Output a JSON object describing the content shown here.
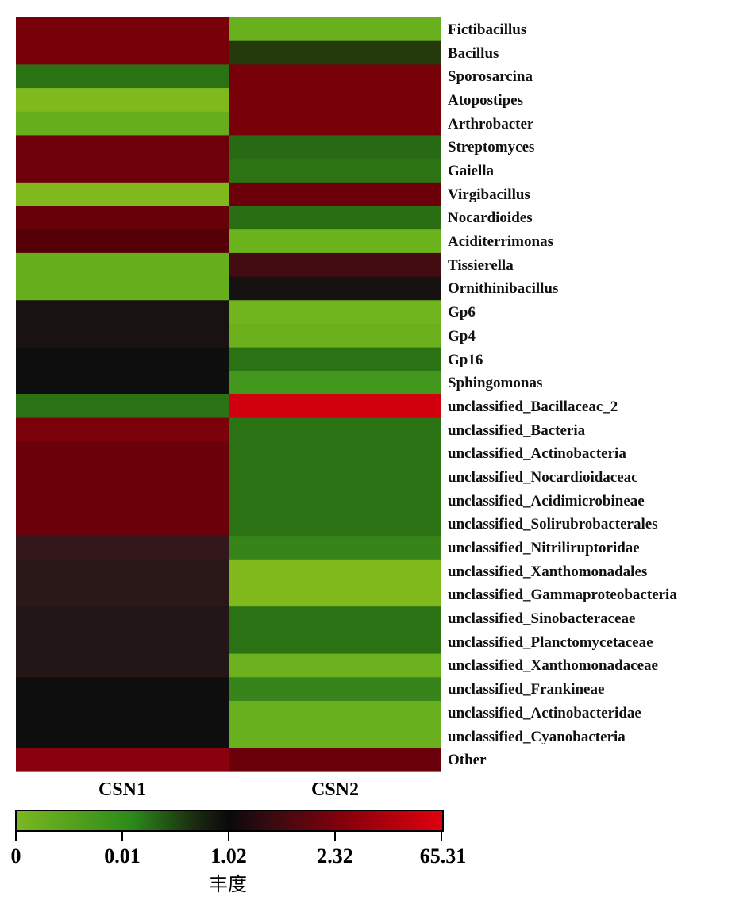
{
  "chart_data": {
    "type": "heatmap",
    "columns": [
      "CSN1",
      "CSN2"
    ],
    "rows": [
      "Fictibacillus",
      "Bacillus",
      "Sporosarcina",
      "Atopostipes",
      "Arthrobacter",
      "Streptomyces",
      "Gaiella",
      "Virgibacillus",
      "Nocardioides",
      "Aciditerrimonas",
      "Tissierella",
      "Ornithinibacillus",
      "Gp6",
      "Gp4",
      "Gp16",
      "Sphingomonas",
      "unclassified_Bacillaceac_2",
      "unclassified_Bacteria",
      "unclassified_Actinobacteria",
      "unclassified_Nocardioidaceac",
      "unclassified_Acidimicrobineae",
      "unclassified_Solirubrobacterales",
      "unclassified_Nitriliruptoridae",
      "unclassified_Xanthomonadales",
      "unclassified_Gammaproteobacteria",
      "unclassified_Sinobacteraceae",
      "unclassified_Planctomycetaceae",
      "unclassified_Xanthomonadaceae",
      "unclassified_Frankineae",
      "unclassified_Actinobacteridae",
      "unclassified_Cyanobacteria",
      "Other"
    ],
    "cell_colors": [
      [
        "#780008",
        "#68b01e"
      ],
      [
        "#780008",
        "#253a0c"
      ],
      [
        "#2a7214",
        "#780008"
      ],
      [
        "#7fb91c",
        "#780008"
      ],
      [
        "#66ae1c",
        "#780008"
      ],
      [
        "#6e000a",
        "#286a14"
      ],
      [
        "#6e000a",
        "#2c7414"
      ],
      [
        "#7fb91c",
        "#6c000a"
      ],
      [
        "#68000a",
        "#2a6e14"
      ],
      [
        "#550006",
        "#6cb41e"
      ],
      [
        "#66ae1c",
        "#420c12"
      ],
      [
        "#66ae1c",
        "#161212"
      ],
      [
        "#181210",
        "#70b41e"
      ],
      [
        "#181210",
        "#6cb01e"
      ],
      [
        "#0e0e0e",
        "#2a7214"
      ],
      [
        "#0e0e0e",
        "#42961c"
      ],
      [
        "#2a7214",
        "#d0000e"
      ],
      [
        "#7a000a",
        "#2a7214"
      ],
      [
        "#6c000a",
        "#2a7214"
      ],
      [
        "#6c000a",
        "#2a7214"
      ],
      [
        "#6c000a",
        "#2a7214"
      ],
      [
        "#6c000a",
        "#2a7214"
      ],
      [
        "#32181a",
        "#36841a"
      ],
      [
        "#2a1818",
        "#7fb91c"
      ],
      [
        "#2a1818",
        "#7fb91c"
      ],
      [
        "#221616",
        "#2a7214"
      ],
      [
        "#221616",
        "#2a7214"
      ],
      [
        "#221616",
        "#6cb21e"
      ],
      [
        "#0e0e0e",
        "#36841a"
      ],
      [
        "#0e0e0e",
        "#68b01e"
      ],
      [
        "#0e0e0e",
        "#68b01e"
      ],
      [
        "#8a000c",
        "#6a000a"
      ]
    ],
    "colorbar": {
      "ticks": [
        "0",
        "0.01",
        "1.02",
        "2.32",
        "65.31"
      ],
      "label": "丰度",
      "colors": [
        "#7ab820",
        "#0a0a0a",
        "#e0000e"
      ]
    }
  }
}
